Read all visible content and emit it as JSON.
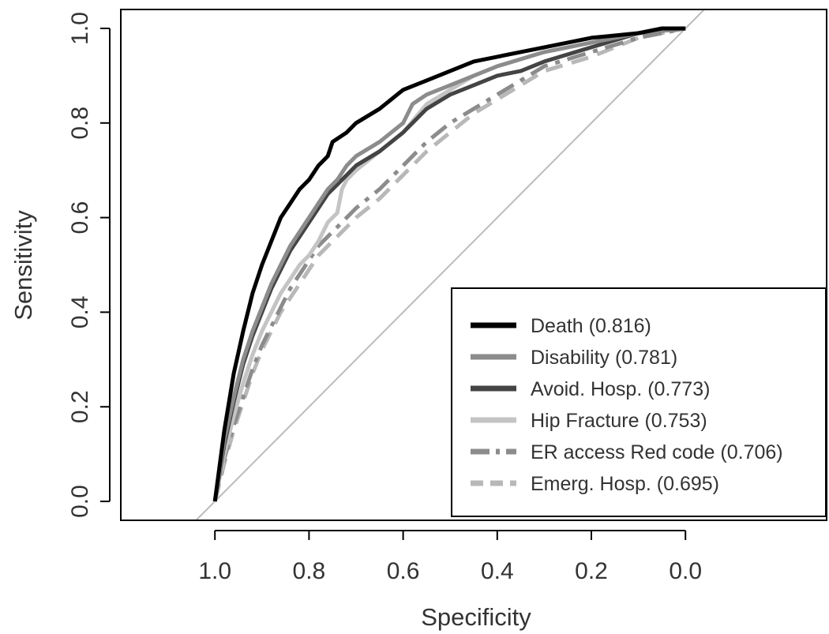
{
  "chart_data": {
    "type": "line",
    "xlabel": "Specificity",
    "ylabel": "Sensitivity",
    "x_reversed": true,
    "xlim": [
      1.2,
      -0.3
    ],
    "ylim": [
      -0.04,
      1.04
    ],
    "x_ticks": [
      "1.0",
      "0.8",
      "0.6",
      "0.4",
      "0.2",
      "0.0"
    ],
    "y_ticks": [
      "0.0",
      "0.2",
      "0.4",
      "0.6",
      "0.8",
      "1.0"
    ],
    "x_tick_values": [
      1.0,
      0.8,
      0.6,
      0.4,
      0.2,
      0.0
    ],
    "y_tick_values": [
      0.0,
      0.2,
      0.4,
      0.6,
      0.8,
      1.0
    ],
    "reference_line": {
      "from": [
        1,
        0
      ],
      "to": [
        0,
        1
      ],
      "color": "#bbbbbb"
    },
    "legend_placement": "bottom-right",
    "grid": false,
    "series": [
      {
        "name": "Death (0.816)",
        "color": "#000000",
        "dash": "solid",
        "x": [
          1.0,
          0.98,
          0.96,
          0.94,
          0.92,
          0.9,
          0.88,
          0.86,
          0.84,
          0.82,
          0.8,
          0.78,
          0.76,
          0.75,
          0.72,
          0.7,
          0.65,
          0.6,
          0.55,
          0.5,
          0.45,
          0.4,
          0.3,
          0.2,
          0.1,
          0.05,
          0.0
        ],
        "y": [
          0.0,
          0.15,
          0.27,
          0.36,
          0.44,
          0.5,
          0.55,
          0.6,
          0.63,
          0.66,
          0.68,
          0.71,
          0.73,
          0.76,
          0.78,
          0.8,
          0.83,
          0.87,
          0.89,
          0.91,
          0.93,
          0.94,
          0.96,
          0.98,
          0.99,
          1.0,
          1.0
        ]
      },
      {
        "name": "Disability (0.781)",
        "color": "#8c8c8c",
        "dash": "solid",
        "x": [
          1.0,
          0.98,
          0.96,
          0.94,
          0.92,
          0.9,
          0.88,
          0.86,
          0.84,
          0.82,
          0.8,
          0.78,
          0.76,
          0.74,
          0.72,
          0.7,
          0.65,
          0.6,
          0.58,
          0.55,
          0.5,
          0.45,
          0.4,
          0.3,
          0.2,
          0.1,
          0.0
        ],
        "y": [
          0.0,
          0.13,
          0.22,
          0.3,
          0.36,
          0.41,
          0.46,
          0.5,
          0.54,
          0.57,
          0.6,
          0.63,
          0.66,
          0.68,
          0.71,
          0.73,
          0.76,
          0.8,
          0.84,
          0.86,
          0.88,
          0.9,
          0.92,
          0.95,
          0.97,
          0.99,
          1.0
        ]
      },
      {
        "name": "Avoid. Hosp. (0.773)",
        "color": "#444444",
        "dash": "solid",
        "x": [
          1.0,
          0.98,
          0.96,
          0.94,
          0.92,
          0.9,
          0.88,
          0.86,
          0.84,
          0.82,
          0.8,
          0.78,
          0.76,
          0.74,
          0.72,
          0.7,
          0.65,
          0.6,
          0.55,
          0.5,
          0.45,
          0.4,
          0.35,
          0.3,
          0.2,
          0.1,
          0.0
        ],
        "y": [
          0.0,
          0.12,
          0.21,
          0.29,
          0.35,
          0.4,
          0.45,
          0.49,
          0.53,
          0.56,
          0.59,
          0.62,
          0.65,
          0.67,
          0.69,
          0.71,
          0.74,
          0.78,
          0.83,
          0.86,
          0.88,
          0.9,
          0.91,
          0.93,
          0.96,
          0.99,
          1.0
        ]
      },
      {
        "name": "Hip Fracture (0.753)",
        "color": "#c4c4c4",
        "dash": "solid",
        "x": [
          1.0,
          0.98,
          0.96,
          0.94,
          0.92,
          0.9,
          0.88,
          0.86,
          0.84,
          0.82,
          0.8,
          0.78,
          0.76,
          0.74,
          0.73,
          0.72,
          0.7,
          0.65,
          0.6,
          0.55,
          0.5,
          0.45,
          0.4,
          0.3,
          0.2,
          0.1,
          0.0
        ],
        "y": [
          0.0,
          0.1,
          0.18,
          0.25,
          0.31,
          0.36,
          0.4,
          0.44,
          0.47,
          0.5,
          0.52,
          0.55,
          0.59,
          0.61,
          0.66,
          0.68,
          0.7,
          0.74,
          0.78,
          0.84,
          0.87,
          0.9,
          0.92,
          0.95,
          0.97,
          0.99,
          1.0
        ]
      },
      {
        "name": "ER access Red code (0.706)",
        "color": "#8c8c8c",
        "dash": "dashdot",
        "x": [
          1.0,
          0.98,
          0.96,
          0.94,
          0.92,
          0.9,
          0.88,
          0.86,
          0.84,
          0.82,
          0.8,
          0.78,
          0.76,
          0.74,
          0.72,
          0.7,
          0.65,
          0.6,
          0.55,
          0.5,
          0.45,
          0.4,
          0.35,
          0.3,
          0.2,
          0.1,
          0.0
        ],
        "y": [
          0.0,
          0.09,
          0.16,
          0.22,
          0.28,
          0.33,
          0.37,
          0.41,
          0.45,
          0.48,
          0.51,
          0.54,
          0.56,
          0.58,
          0.6,
          0.62,
          0.66,
          0.71,
          0.76,
          0.8,
          0.83,
          0.86,
          0.89,
          0.92,
          0.95,
          0.98,
          1.0
        ]
      },
      {
        "name": "Emerg. Hosp. (0.695)",
        "color": "#b8b8b8",
        "dash": "dashed",
        "x": [
          1.0,
          0.98,
          0.96,
          0.94,
          0.92,
          0.9,
          0.88,
          0.86,
          0.84,
          0.82,
          0.8,
          0.78,
          0.76,
          0.74,
          0.72,
          0.7,
          0.65,
          0.6,
          0.55,
          0.5,
          0.45,
          0.4,
          0.35,
          0.3,
          0.2,
          0.1,
          0.0
        ],
        "y": [
          0.0,
          0.08,
          0.15,
          0.21,
          0.27,
          0.32,
          0.36,
          0.4,
          0.43,
          0.46,
          0.49,
          0.52,
          0.54,
          0.56,
          0.58,
          0.6,
          0.64,
          0.69,
          0.74,
          0.78,
          0.82,
          0.85,
          0.88,
          0.91,
          0.94,
          0.98,
          1.0
        ]
      }
    ]
  }
}
